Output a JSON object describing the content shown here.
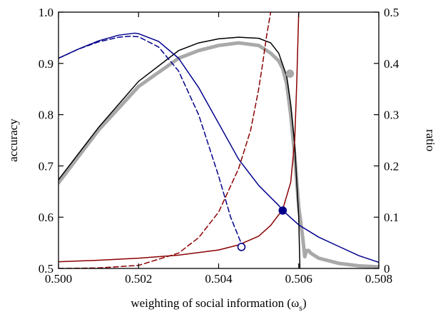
{
  "chart_data": {
    "type": "line",
    "title": "",
    "xlabel": "weighting of social information (ω",
    "xlabel_sub": "s",
    "xlabel_close": ")",
    "ylabel_left": "accuracy",
    "ylabel_right": "ratio",
    "xlim": [
      0.5,
      0.508
    ],
    "ylim_left": [
      0.5,
      1.0
    ],
    "ylim_right": [
      0,
      0.5
    ],
    "x_ticks": [
      0.5,
      0.502,
      0.504,
      0.506,
      0.508
    ],
    "x_tick_labels": [
      "0.500",
      "0.502",
      "0.504",
      "0.506",
      "0.508"
    ],
    "y_left_ticks": [
      0.5,
      0.6,
      0.7,
      0.8,
      0.9,
      1.0
    ],
    "y_left_tick_labels": [
      "0.5",
      "0.6",
      "0.7",
      "0.8",
      "0.9",
      "1.0"
    ],
    "y_right_ticks": [
      0,
      0.1,
      0.2,
      0.3,
      0.4,
      0.5
    ],
    "y_right_tick_labels": [
      "0",
      "0.1",
      "0.2",
      "0.3",
      "0.4",
      "0.5"
    ],
    "grid": false,
    "series": [
      {
        "axis": "left",
        "color": "#a9a9a9",
        "style": "solid",
        "width": 5,
        "x": [
          0.5,
          0.501,
          0.502,
          0.503,
          0.5035,
          0.504,
          0.5045,
          0.505,
          0.5053,
          0.5055,
          0.5056,
          0.5057,
          0.5058,
          0.5059,
          0.506,
          0.5061,
          0.50615,
          0.5062,
          0.50625,
          0.5063,
          0.5065,
          0.507,
          0.5075,
          0.508
        ],
        "y": [
          0.667,
          0.77,
          0.855,
          0.91,
          0.925,
          0.935,
          0.94,
          0.935,
          0.92,
          0.905,
          0.89,
          0.86,
          0.8,
          0.72,
          0.62,
          0.56,
          0.523,
          0.535,
          0.535,
          0.53,
          0.52,
          0.51,
          0.505,
          0.503
        ]
      },
      {
        "axis": "left",
        "color": "#000000",
        "style": "solid",
        "width": 1.5,
        "x": [
          0.5,
          0.501,
          0.502,
          0.503,
          0.5035,
          0.504,
          0.5045,
          0.505,
          0.5053,
          0.5055,
          0.5057,
          0.5058,
          0.5059,
          0.506,
          0.50603
        ],
        "y": [
          0.673,
          0.775,
          0.865,
          0.925,
          0.94,
          0.948,
          0.951,
          0.949,
          0.94,
          0.92,
          0.875,
          0.82,
          0.74,
          0.6,
          0.5
        ]
      },
      {
        "axis": "right",
        "color": "#00008b",
        "style": "solid",
        "width": 1.5,
        "x": [
          0.5,
          0.5005,
          0.501,
          0.5015,
          0.5019,
          0.502,
          0.5025,
          0.503,
          0.5035,
          0.504,
          0.5045,
          0.505,
          0.5055,
          0.5056,
          0.506,
          0.5065,
          0.507,
          0.5075,
          0.508
        ],
        "y": [
          0.41,
          0.428,
          0.444,
          0.455,
          0.459,
          0.458,
          0.443,
          0.41,
          0.353,
          0.283,
          0.213,
          0.162,
          0.123,
          0.113,
          0.085,
          0.061,
          0.043,
          0.025,
          0.012
        ]
      },
      {
        "axis": "right",
        "color": "#00008b",
        "style": "dashed",
        "width": 1.5,
        "x": [
          0.5,
          0.5005,
          0.501,
          0.5015,
          0.5018,
          0.502,
          0.5025,
          0.503,
          0.5035,
          0.504,
          0.5043,
          0.5046
        ],
        "y": [
          0.41,
          0.428,
          0.442,
          0.451,
          0.453,
          0.452,
          0.432,
          0.385,
          0.3,
          0.18,
          0.1,
          0.042
        ]
      },
      {
        "axis": "right",
        "color": "#8b0000",
        "style": "solid",
        "width": 1.5,
        "x": [
          0.5,
          0.501,
          0.502,
          0.503,
          0.504,
          0.5045,
          0.505,
          0.5053,
          0.5056,
          0.5058,
          0.5059,
          0.50595,
          0.506
        ],
        "y": [
          0.013,
          0.016,
          0.02,
          0.026,
          0.036,
          0.046,
          0.063,
          0.084,
          0.115,
          0.168,
          0.25,
          0.36,
          0.5
        ]
      },
      {
        "axis": "right",
        "color": "#8b0000",
        "style": "dashed",
        "width": 1.5,
        "x": [
          0.5,
          0.501,
          0.502,
          0.503,
          0.5035,
          0.504,
          0.5045,
          0.5048,
          0.505,
          0.5051,
          0.5052,
          0.5053
        ],
        "y": [
          0.0,
          0.001,
          0.006,
          0.03,
          0.06,
          0.11,
          0.195,
          0.27,
          0.35,
          0.4,
          0.455,
          0.5
        ]
      }
    ],
    "markers": [
      {
        "axis": "right",
        "x": 0.50457,
        "y": 0.042,
        "color": "#00008b",
        "filled": false
      },
      {
        "axis": "right",
        "x": 0.5056,
        "y": 0.113,
        "color": "#00008b",
        "filled": true
      },
      {
        "axis": "left",
        "x": 0.50578,
        "y": 0.88,
        "color": "#a9a9a9",
        "filled": true
      }
    ]
  }
}
